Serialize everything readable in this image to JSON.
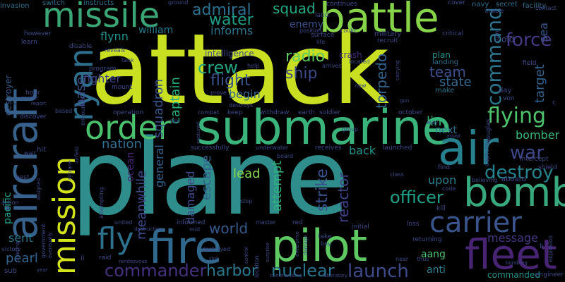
{
  "words": {
    "attack": "attack",
    "plane": "plane",
    "submarine": "submarine",
    "aircraft": "aircraft",
    "missile": "missile",
    "battle": "battle",
    "bomb": "bomb",
    "fleet": "fleet",
    "pilot": "pilot",
    "fire": "fire",
    "air": "air",
    "order": "order",
    "mission": "mission",
    "ryan": "ryan",
    "carrier": "carrier",
    "fly": "fly",
    "commander": "commander",
    "command": "command",
    "launch": "launch",
    "nuclear": "nuclear",
    "flying": "flying",
    "force": "force",
    "war": "war",
    "destroy": "destroy",
    "crew": "crew",
    "flight": "flight",
    "admiral": "admiral",
    "water": "water",
    "squad": "squad",
    "radio": "radio",
    "ship": "ship",
    "lead": "lead",
    "world": "world",
    "harbor": "harbor",
    "officer": "officer",
    "team": "team",
    "state": "state",
    "lin": "lin",
    "next": "next",
    "bomber": "bomber",
    "upon": "upon",
    "message": "message",
    "aang": "aang",
    "anti": "anti",
    "commanded": "commanded",
    "pearl": "pearl",
    "sent": "sent",
    "back": "back",
    "fighter": "fighter",
    "flynn": "flynn",
    "william": "william",
    "informs": "informs",
    "enemy": "enemy",
    "nation": "nation",
    "begin": "begin",
    "ocean": "ocean",
    "damaged": "damaged",
    "general": "general",
    "escape": "escape",
    "attempt": "attempt",
    "strike": "strike",
    "reactor": "reactor",
    "torpedo": "torpedo",
    "squadron": "squadron",
    "captain": "captain",
    "base": "base",
    "target": "target",
    "sea": "sea",
    "intelligence": "intelligence",
    "pacific": "pacific",
    "destroyer": "destroyer",
    "meanwhile": "meanwhile",
    "crash": "crash",
    "plan": "plan",
    "landing": "landing",
    "make": "make",
    "day": "day",
    "von": "von",
    "old": "old",
    "facility": "facility",
    "navy": "navy",
    "secret": "secret",
    "military": "military",
    "recruit": "recruit",
    "critical": "critical",
    "surface": "surface",
    "land": "land",
    "continues": "continues",
    "cover": "cover",
    "switch": "switch",
    "instructs": "instructs",
    "ground": "ground",
    "invasion": "invasion",
    "however": "however",
    "learn": "learn",
    "disable": "disable",
    "reveals": "reveals",
    "tank": "tank",
    "program": "program",
    "hour": "hour",
    "mount": "mount",
    "operation": "operation",
    "combat": "combat",
    "keep": "keep",
    "withdraw": "withdraw",
    "earth": "earth",
    "soldier": "soldier",
    "october": "october",
    "group": "group",
    "successfully": "successfully",
    "underwater": "underwater",
    "receives": "receives",
    "launched": "launched",
    "board": "board",
    "class": "class",
    "find": "find",
    "intercept": "intercept",
    "shield": "shield",
    "aboard": "aboard",
    "believing": "believing",
    "code": "code",
    "kill": "kill",
    "informed": "informed",
    "mid": "mid",
    "master": "master",
    "red": "red",
    "initial": "initial",
    "loss": "loss",
    "returning": "returning",
    "take": "take",
    "bay": "bay",
    "thus": "thus",
    "near": "near",
    "raid": "raid",
    "destroyed": "destroyed",
    "stop": "stop",
    "united": "united",
    "sub": "sub",
    "ii": "ii",
    "victory": "victory",
    "action": "action",
    "best": "best",
    "discover": "discover",
    "eventually": "eventually",
    "destroys": "destroys",
    "prove": "prove",
    "located": "located",
    "arrives": "arrives",
    "position": "position",
    "could": "could",
    "risk": "risk",
    "captured": "captured",
    "destruction": "destruction",
    "rendezvous": "rendezvous",
    "life": "life",
    "gun": "gun",
    "assist": "assist",
    "way": "way",
    "douglas": "douglas",
    "capture": "capture",
    "field": "field",
    "contact": "contact",
    "unable": "unable",
    "turn": "turn",
    "b": "b",
    "c": "c",
    "explosion": "explosion",
    "engineer": "engineer",
    "laboratory": "laboratory",
    "commanding": "commanding",
    "enterprise": "enterprise",
    "damage": "damage",
    "help": "help",
    "new": "new",
    "airfield": "airfield",
    "airplane": "airplane",
    "assigned": "assigned",
    "attempting": "attempting",
    "report": "report",
    "course": "course",
    "based": "based",
    "encounter": "encounter",
    "hit": "hit",
    "wait": "wait",
    "government": "government",
    "ordering": "ordering",
    "year": "year",
    "bombing": "bombing",
    "carrying": "carrying",
    "sink": "sink",
    "surprise": "surprise",
    "control": "control",
    "location": "location"
  }
}
